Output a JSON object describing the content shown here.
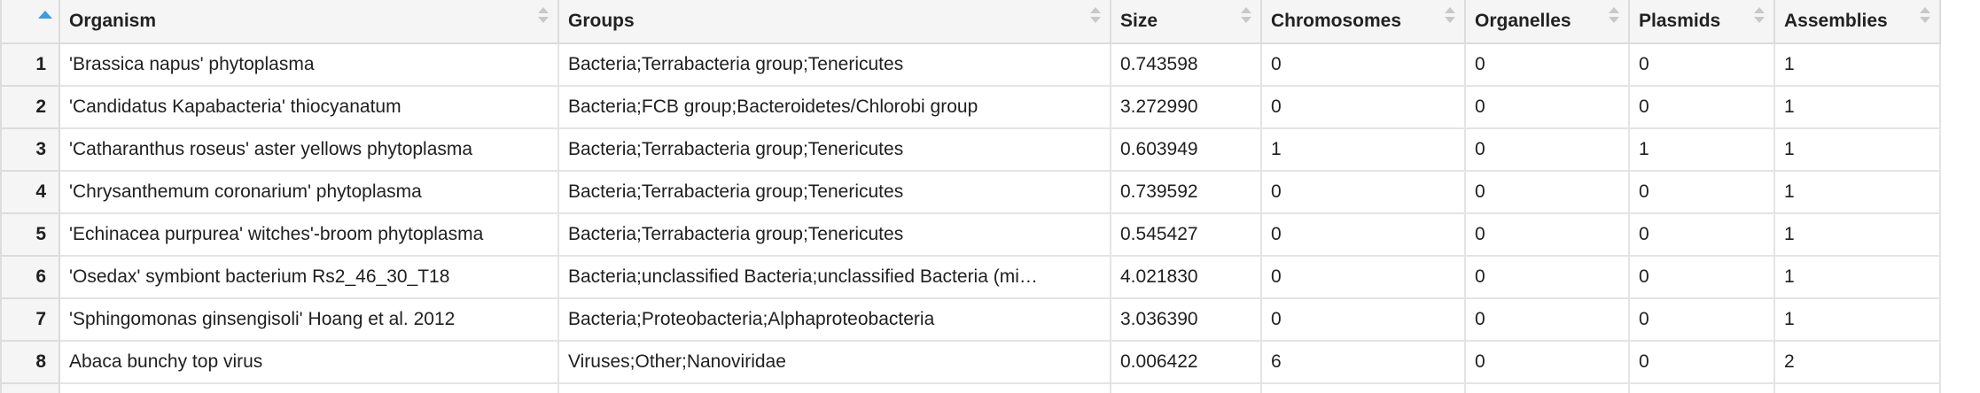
{
  "table": {
    "columns": [
      {
        "key": "organism",
        "label": "Organism"
      },
      {
        "key": "groups",
        "label": "Groups"
      },
      {
        "key": "size",
        "label": "Size"
      },
      {
        "key": "chromosomes",
        "label": "Chromosomes"
      },
      {
        "key": "organelles",
        "label": "Organelles"
      },
      {
        "key": "plasmids",
        "label": "Plasmids"
      },
      {
        "key": "assemblies",
        "label": "Assemblies"
      }
    ],
    "rows": [
      {
        "index": "1",
        "organism": "'Brassica napus' phytoplasma",
        "groups": "Bacteria;Terrabacteria group;Tenericutes",
        "size": "0.743598",
        "chromosomes": "0",
        "organelles": "0",
        "plasmids": "0",
        "assemblies": "1"
      },
      {
        "index": "2",
        "organism": "'Candidatus Kapabacteria' thiocyanatum",
        "groups": "Bacteria;FCB group;Bacteroidetes/Chlorobi group",
        "size": "3.272990",
        "chromosomes": "0",
        "organelles": "0",
        "plasmids": "0",
        "assemblies": "1"
      },
      {
        "index": "3",
        "organism": "'Catharanthus roseus' aster yellows phytoplasma",
        "groups": "Bacteria;Terrabacteria group;Tenericutes",
        "size": "0.603949",
        "chromosomes": "1",
        "organelles": "0",
        "plasmids": "1",
        "assemblies": "1"
      },
      {
        "index": "4",
        "organism": "'Chrysanthemum coronarium' phytoplasma",
        "groups": "Bacteria;Terrabacteria group;Tenericutes",
        "size": "0.739592",
        "chromosomes": "0",
        "organelles": "0",
        "plasmids": "0",
        "assemblies": "1"
      },
      {
        "index": "5",
        "organism": "'Echinacea purpurea' witches'-broom phytoplasma",
        "groups": "Bacteria;Terrabacteria group;Tenericutes",
        "size": "0.545427",
        "chromosomes": "0",
        "organelles": "0",
        "plasmids": "0",
        "assemblies": "1"
      },
      {
        "index": "6",
        "organism": "'Osedax' symbiont bacterium Rs2_46_30_T18",
        "groups": "Bacteria;unclassified Bacteria;unclassified Bacteria (mi…",
        "size": "4.021830",
        "chromosomes": "0",
        "organelles": "0",
        "plasmids": "0",
        "assemblies": "1"
      },
      {
        "index": "7",
        "organism": "'Sphingomonas ginsengisoli' Hoang et al. 2012",
        "groups": "Bacteria;Proteobacteria;Alphaproteobacteria",
        "size": "3.036390",
        "chromosomes": "0",
        "organelles": "0",
        "plasmids": "0",
        "assemblies": "1"
      },
      {
        "index": "8",
        "organism": "Abaca bunchy top virus",
        "groups": "Viruses;Other;Nanoviridae",
        "size": "0.006422",
        "chromosomes": "6",
        "organelles": "0",
        "plasmids": "0",
        "assemblies": "2"
      }
    ]
  },
  "colors": {
    "sort_active": "#3b9ddd",
    "sort_inactive": "#c8c8c8",
    "header_bg": "#f5f5f5",
    "grid_line": "#e4e4e4"
  },
  "icons": {
    "index_sort": "sort-ascending-icon",
    "column_sort": "sort-toggle-icon"
  }
}
